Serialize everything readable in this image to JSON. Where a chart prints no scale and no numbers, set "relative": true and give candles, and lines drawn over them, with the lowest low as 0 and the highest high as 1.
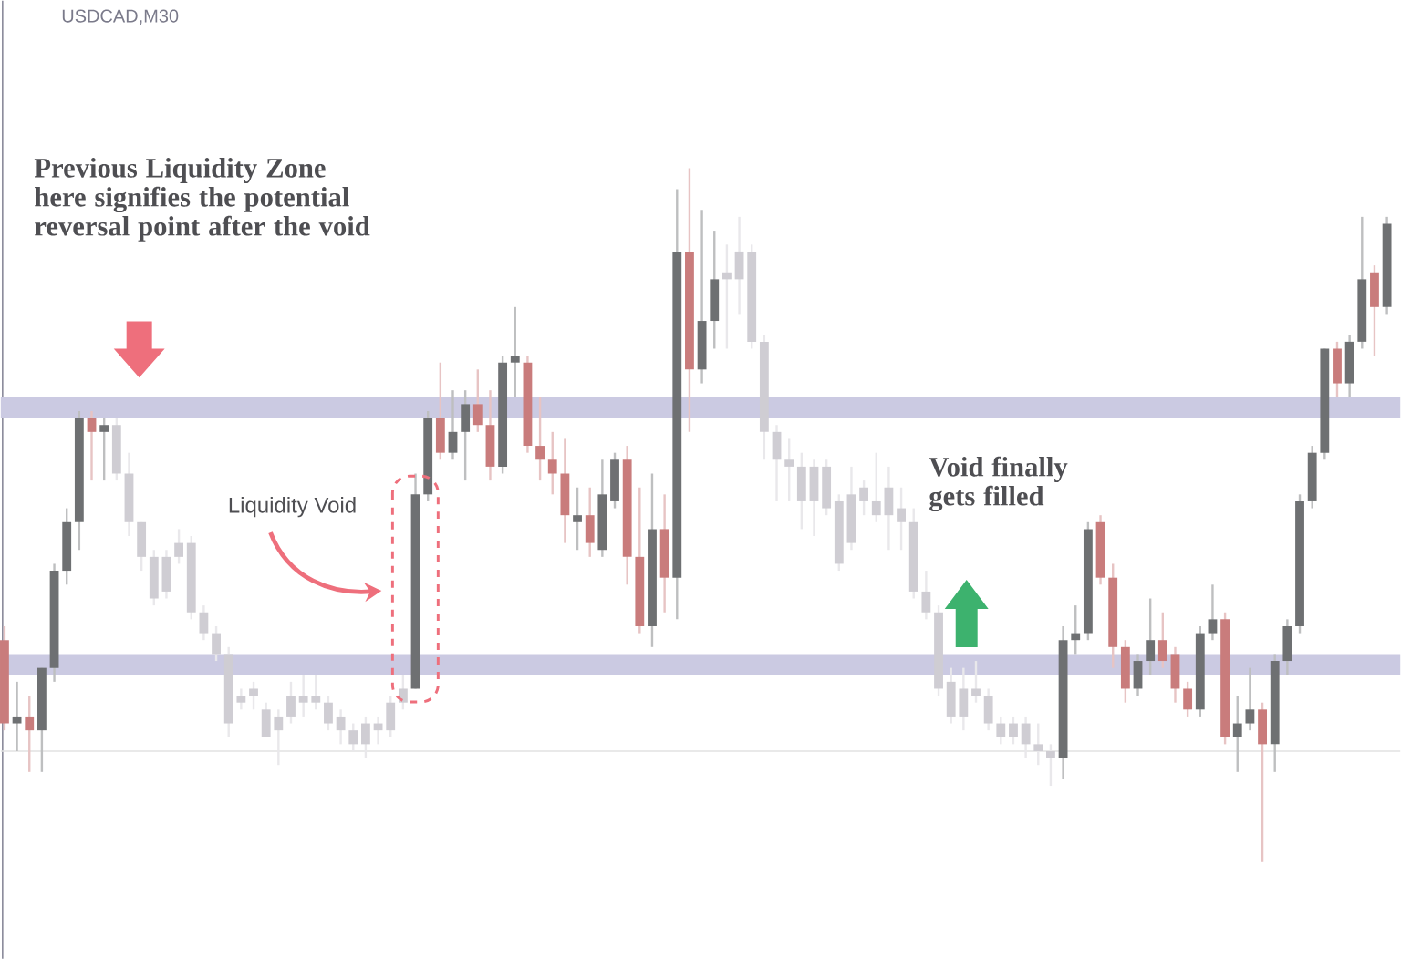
{
  "chart_data": {
    "type": "candlestick",
    "relative": true,
    "title": "USDCAD,M30",
    "annotations": [
      "Previous Liquidity Zone here signifies the potential reversal point after the void",
      "Liquidity Void",
      "Void finally gets filled"
    ],
    "categories": [
      null,
      null,
      null,
      null,
      null,
      null,
      null,
      null,
      null,
      null,
      null,
      null,
      null,
      null,
      null,
      null,
      null,
      null,
      null,
      null,
      null,
      null,
      null,
      null,
      null,
      null,
      null,
      null,
      null,
      null,
      null,
      null,
      null,
      null,
      null,
      null,
      null,
      null,
      null,
      null,
      null,
      null,
      null,
      null,
      null,
      null,
      null,
      null,
      null,
      null,
      null,
      null,
      null,
      null,
      null,
      null,
      null,
      null,
      null,
      null,
      null,
      null,
      null,
      null,
      null,
      null,
      null,
      null,
      null,
      null,
      null,
      null,
      null,
      null,
      null,
      null,
      null,
      null,
      null,
      null,
      null,
      null,
      null,
      null,
      null,
      null,
      null,
      null,
      null,
      null,
      null,
      null,
      null,
      null,
      null,
      null,
      null,
      null,
      null,
      null,
      null,
      null,
      null,
      null,
      null,
      null,
      null,
      null,
      null,
      null,
      null,
      null
    ],
    "ohlc": [
      [
        0.32,
        0.34,
        0.19,
        0.2
      ],
      [
        0.2,
        0.26,
        0.16,
        0.21
      ],
      [
        0.21,
        0.24,
        0.13,
        0.19
      ],
      [
        0.19,
        0.28,
        0.13,
        0.28
      ],
      [
        0.28,
        0.43,
        0.26,
        0.42
      ],
      [
        0.42,
        0.51,
        0.4,
        0.49
      ],
      [
        0.49,
        0.65,
        0.45,
        0.64
      ],
      [
        0.64,
        0.65,
        0.55,
        0.62
      ],
      [
        0.62,
        0.64,
        0.55,
        0.63
      ],
      [
        0.63,
        0.64,
        0.55,
        0.56
      ],
      [
        0.56,
        0.59,
        0.47,
        0.49
      ],
      [
        0.49,
        0.49,
        0.42,
        0.44
      ],
      [
        0.44,
        0.45,
        0.37,
        0.38
      ],
      [
        0.44,
        0.45,
        0.38,
        0.39
      ],
      [
        0.46,
        0.48,
        0.43,
        0.44
      ],
      [
        0.46,
        0.47,
        0.35,
        0.36
      ],
      [
        0.36,
        0.37,
        0.32,
        0.33
      ],
      [
        0.33,
        0.34,
        0.29,
        0.3
      ],
      [
        0.3,
        0.31,
        0.18,
        0.2
      ],
      [
        0.24,
        0.25,
        0.22,
        0.23
      ],
      [
        0.25,
        0.26,
        0.22,
        0.24
      ],
      [
        0.22,
        0.23,
        0.18,
        0.18
      ],
      [
        0.21,
        0.22,
        0.14,
        0.19
      ],
      [
        0.24,
        0.26,
        0.2,
        0.21
      ],
      [
        0.24,
        0.27,
        0.21,
        0.23
      ],
      [
        0.24,
        0.27,
        0.22,
        0.23
      ],
      [
        0.23,
        0.24,
        0.19,
        0.2
      ],
      [
        0.21,
        0.22,
        0.17,
        0.19
      ],
      [
        0.19,
        0.2,
        0.16,
        0.17
      ],
      [
        0.2,
        0.21,
        0.15,
        0.17
      ],
      [
        0.2,
        0.21,
        0.17,
        0.19
      ],
      [
        0.23,
        0.24,
        0.18,
        0.19
      ],
      [
        0.25,
        0.27,
        0.22,
        0.23
      ],
      [
        0.25,
        0.56,
        0.25,
        0.53
      ],
      [
        0.53,
        0.65,
        0.52,
        0.64
      ],
      [
        0.64,
        0.72,
        0.58,
        0.59
      ],
      [
        0.59,
        0.68,
        0.58,
        0.62
      ],
      [
        0.62,
        0.68,
        0.55,
        0.66
      ],
      [
        0.66,
        0.71,
        0.62,
        0.63
      ],
      [
        0.63,
        0.68,
        0.55,
        0.57
      ],
      [
        0.57,
        0.73,
        0.56,
        0.72
      ],
      [
        0.72,
        0.8,
        0.67,
        0.73
      ],
      [
        0.72,
        0.73,
        0.59,
        0.6
      ],
      [
        0.6,
        0.67,
        0.55,
        0.58
      ],
      [
        0.58,
        0.62,
        0.53,
        0.56
      ],
      [
        0.56,
        0.61,
        0.46,
        0.5
      ],
      [
        0.49,
        0.54,
        0.45,
        0.5
      ],
      [
        0.5,
        0.54,
        0.44,
        0.46
      ],
      [
        0.45,
        0.58,
        0.44,
        0.53
      ],
      [
        0.52,
        0.59,
        0.51,
        0.58
      ],
      [
        0.58,
        0.6,
        0.4,
        0.44
      ],
      [
        0.44,
        0.54,
        0.33,
        0.34
      ],
      [
        0.34,
        0.56,
        0.31,
        0.48
      ],
      [
        0.48,
        0.53,
        0.36,
        0.41
      ],
      [
        0.41,
        0.97,
        0.35,
        0.88
      ],
      [
        0.88,
        1.0,
        0.62,
        0.71
      ],
      [
        0.71,
        0.94,
        0.69,
        0.78
      ],
      [
        0.78,
        0.91,
        0.74,
        0.84
      ],
      [
        0.85,
        0.89,
        0.74,
        0.84
      ],
      [
        0.88,
        0.93,
        0.79,
        0.84
      ],
      [
        0.88,
        0.89,
        0.74,
        0.75
      ],
      [
        0.75,
        0.76,
        0.58,
        0.62
      ],
      [
        0.62,
        0.63,
        0.52,
        0.58
      ],
      [
        0.58,
        0.61,
        0.52,
        0.57
      ],
      [
        0.57,
        0.59,
        0.48,
        0.52
      ],
      [
        0.57,
        0.58,
        0.47,
        0.52
      ],
      [
        0.57,
        0.58,
        0.5,
        0.51
      ],
      [
        0.52,
        0.53,
        0.42,
        0.43
      ],
      [
        0.53,
        0.57,
        0.45,
        0.46
      ],
      [
        0.54,
        0.55,
        0.5,
        0.52
      ],
      [
        0.52,
        0.59,
        0.49,
        0.5
      ],
      [
        0.54,
        0.57,
        0.45,
        0.5
      ],
      [
        0.51,
        0.54,
        0.45,
        0.49
      ],
      [
        0.49,
        0.51,
        0.38,
        0.39
      ],
      [
        0.39,
        0.42,
        0.35,
        0.36
      ],
      [
        0.36,
        0.37,
        0.24,
        0.25
      ],
      [
        0.26,
        0.28,
        0.2,
        0.21
      ],
      [
        0.25,
        0.28,
        0.19,
        0.21
      ],
      [
        0.25,
        0.29,
        0.23,
        0.24
      ],
      [
        0.24,
        0.25,
        0.19,
        0.2
      ],
      [
        0.2,
        0.21,
        0.17,
        0.18
      ],
      [
        0.2,
        0.21,
        0.17,
        0.18
      ],
      [
        0.2,
        0.21,
        0.15,
        0.17
      ],
      [
        0.17,
        0.2,
        0.14,
        0.16
      ],
      [
        0.16,
        0.17,
        0.11,
        0.15
      ],
      [
        0.15,
        0.34,
        0.12,
        0.32
      ],
      [
        0.32,
        0.37,
        0.3,
        0.33
      ],
      [
        0.33,
        0.49,
        0.32,
        0.48
      ],
      [
        0.49,
        0.5,
        0.4,
        0.41
      ],
      [
        0.41,
        0.43,
        0.28,
        0.31
      ],
      [
        0.31,
        0.32,
        0.23,
        0.25
      ],
      [
        0.25,
        0.3,
        0.24,
        0.29
      ],
      [
        0.29,
        0.38,
        0.27,
        0.32
      ],
      [
        0.32,
        0.36,
        0.28,
        0.29
      ],
      [
        0.3,
        0.31,
        0.23,
        0.25
      ],
      [
        0.25,
        0.26,
        0.21,
        0.22
      ],
      [
        0.22,
        0.34,
        0.21,
        0.33
      ],
      [
        0.33,
        0.4,
        0.32,
        0.35
      ],
      [
        0.35,
        0.36,
        0.17,
        0.18
      ],
      [
        0.18,
        0.24,
        0.13,
        0.2
      ],
      [
        0.2,
        0.28,
        0.19,
        0.22
      ],
      [
        0.22,
        0.23,
        0.0,
        0.17
      ],
      [
        0.17,
        0.3,
        0.13,
        0.29
      ],
      [
        0.29,
        0.35,
        0.27,
        0.34
      ],
      [
        0.34,
        0.53,
        0.33,
        0.52
      ],
      [
        0.52,
        0.6,
        0.51,
        0.59
      ],
      [
        0.59,
        0.74,
        0.58,
        0.74
      ],
      [
        0.74,
        0.75,
        0.67,
        0.69
      ],
      [
        0.69,
        0.76,
        0.67,
        0.75
      ],
      [
        0.75,
        0.93,
        0.74,
        0.84
      ],
      [
        0.85,
        0.86,
        0.73,
        0.8
      ],
      [
        0.8,
        0.93,
        0.79,
        0.92
      ]
    ],
    "colors": [
      "#c97c7c",
      "#6e7072",
      "#c97c7c",
      "#6e7072",
      "#6e7072",
      "#6e7072",
      "#6e7072",
      "#c97c7c",
      "#6e7072",
      "#cfcdd3",
      "#cfcdd3",
      "#cfcdd3",
      "#cfcdd3",
      "#cfcdd3",
      "#cfcdd3",
      "#cfcdd3",
      "#cfcdd3",
      "#cfcdd3",
      "#cfcdd3",
      "#cfcdd3",
      "#cfcdd3",
      "#cfcdd3",
      "#cfcdd3",
      "#cfcdd3",
      "#cfcdd3",
      "#cfcdd3",
      "#cfcdd3",
      "#cfcdd3",
      "#cfcdd3",
      "#cfcdd3",
      "#cfcdd3",
      "#cfcdd3",
      "#cfcdd3",
      "#6e7072",
      "#6e7072",
      "#c97c7c",
      "#6e7072",
      "#6e7072",
      "#c97c7c",
      "#c97c7c",
      "#6e7072",
      "#6e7072",
      "#c97c7c",
      "#c97c7c",
      "#c97c7c",
      "#c97c7c",
      "#6e7072",
      "#c97c7c",
      "#6e7072",
      "#6e7072",
      "#c97c7c",
      "#c97c7c",
      "#6e7072",
      "#c97c7c",
      "#6e7072",
      "#c97c7c",
      "#6e7072",
      "#6e7072",
      "#cfcdd3",
      "#cfcdd3",
      "#cfcdd3",
      "#cfcdd3",
      "#cfcdd3",
      "#cfcdd3",
      "#cfcdd3",
      "#cfcdd3",
      "#cfcdd3",
      "#cfcdd3",
      "#cfcdd3",
      "#cfcdd3",
      "#cfcdd3",
      "#cfcdd3",
      "#cfcdd3",
      "#cfcdd3",
      "#cfcdd3",
      "#cfcdd3",
      "#cfcdd3",
      "#cfcdd3",
      "#cfcdd3",
      "#cfcdd3",
      "#cfcdd3",
      "#cfcdd3",
      "#cfcdd3",
      "#cfcdd3",
      "#cfcdd3",
      "#6e7072",
      "#6e7072",
      "#6e7072",
      "#c97c7c",
      "#c97c7c",
      "#c97c7c",
      "#6e7072",
      "#6e7072",
      "#c97c7c",
      "#c97c7c",
      "#c97c7c",
      "#6e7072",
      "#6e7072",
      "#c97c7c",
      "#6e7072",
      "#6e7072",
      "#c97c7c",
      "#6e7072",
      "#6e7072",
      "#6e7072",
      "#6e7072",
      "#6e7072",
      "#c97c7c",
      "#6e7072",
      "#6e7072",
      "#c97c7c",
      "#6e7072"
    ],
    "bands": [
      {
        "axis": "y",
        "from": 0.64,
        "to": 0.67,
        "color": "#cbcae2"
      },
      {
        "axis": "y",
        "from": 0.27,
        "to": 0.3,
        "color": "#cbcae2"
      }
    ],
    "ref_lines": [
      {
        "axis": "y",
        "value": 0.16,
        "color": "#e2e2e2"
      }
    ]
  }
}
